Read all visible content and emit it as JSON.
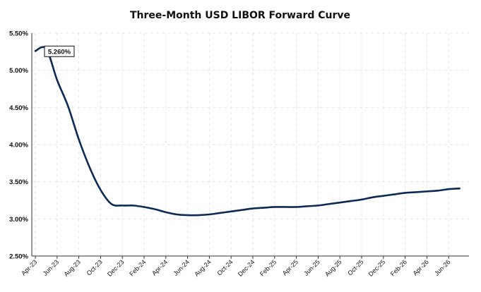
{
  "chart_data": {
    "type": "line",
    "title": "Three-Month USD LIBOR Forward Curve",
    "xlabel": "",
    "ylabel": "",
    "x_ticks": [
      "Apr-23",
      "Jun-23",
      "Aug-23",
      "Oct-23",
      "Dec-23",
      "Feb-24",
      "Apr-24",
      "Jun-24",
      "Aug-24",
      "Oct-24",
      "Dec-24",
      "Feb-25",
      "Apr-25",
      "Jun-25",
      "Aug-25",
      "Oct-25",
      "Dec-25",
      "Feb-26",
      "Apr-26",
      "Jun-26"
    ],
    "y_ticks": [
      "2.50%",
      "3.00%",
      "3.50%",
      "4.00%",
      "4.50%",
      "5.00%",
      "5.50%"
    ],
    "ylim": [
      2.5,
      5.5
    ],
    "y_format": "percent",
    "grid": "dashed",
    "legend": "none",
    "series": [
      {
        "color": "#0b2a55",
        "x": [
          "Apr-23",
          "May-23",
          "Jun-23",
          "Jul-23",
          "Aug-23",
          "Sep-23",
          "Oct-23",
          "Nov-23",
          "Dec-23",
          "Jan-24",
          "Feb-24",
          "Mar-24",
          "Apr-24",
          "May-24",
          "Jun-24",
          "Jul-24",
          "Aug-24",
          "Sep-24",
          "Oct-24",
          "Nov-24",
          "Dec-24",
          "Jan-25",
          "Feb-25",
          "Mar-25",
          "Apr-25",
          "May-25",
          "Jun-25",
          "Jul-25",
          "Aug-25",
          "Sep-25",
          "Oct-25",
          "Nov-25",
          "Dec-25",
          "Jan-26",
          "Feb-26",
          "Mar-26",
          "Apr-26",
          "May-26",
          "Jun-26",
          "Jul-26"
        ],
        "values": [
          5.26,
          5.29,
          4.87,
          4.52,
          4.07,
          3.69,
          3.39,
          3.2,
          3.18,
          3.18,
          3.16,
          3.13,
          3.09,
          3.06,
          3.05,
          3.05,
          3.06,
          3.08,
          3.1,
          3.12,
          3.14,
          3.15,
          3.16,
          3.16,
          3.16,
          3.17,
          3.18,
          3.2,
          3.22,
          3.24,
          3.26,
          3.29,
          3.31,
          3.33,
          3.35,
          3.36,
          3.37,
          3.38,
          3.4,
          3.41
        ]
      }
    ],
    "annotations": [
      {
        "text": "5.260%",
        "x": "Apr-23",
        "y": 5.26
      }
    ]
  }
}
